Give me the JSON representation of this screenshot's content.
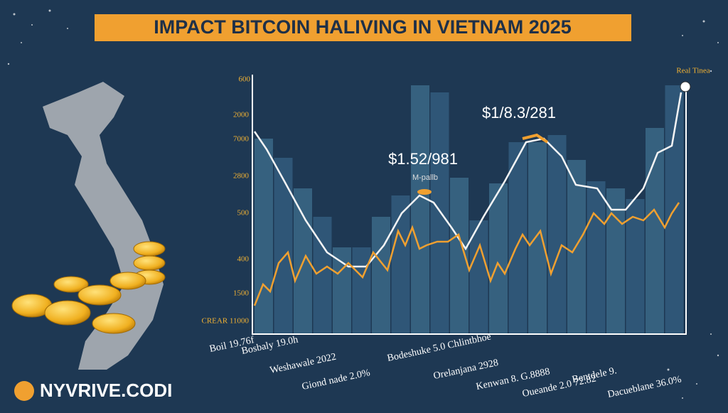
{
  "header": {
    "title": "IMPACT BITCOIN HALIVING IN VIETNAM 2025"
  },
  "chart": {
    "y_labels": [
      "600",
      "2000",
      "7000",
      "2800",
      "500",
      "400",
      "1500",
      "CREAR 11000"
    ],
    "corner_label": "Real Tinea",
    "annotations": [
      "$1.52/981",
      "M-pallb",
      "$1/8.3/281"
    ],
    "x_labels": [
      "Boil 19.76f",
      "Bosbaly 19.0h",
      "Weshawale 2022",
      "Giond nade 2.0%",
      "Bodeshuke 5.0 Chlintbhoe",
      "Orelanjana 2928",
      "Kenwan 8. G.8888",
      "Oueande 2.0 72.82",
      "Bentdele 9.",
      "Dacueblane 36.0%"
    ]
  },
  "brand": "NYVRIVE.CODI"
}
